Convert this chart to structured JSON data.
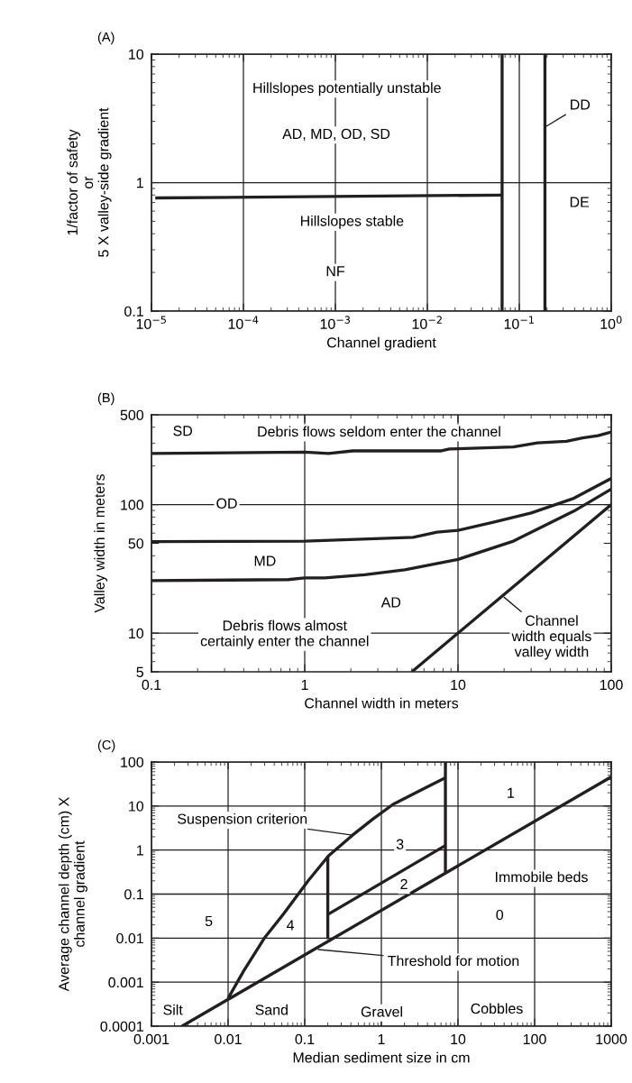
{
  "chart_data": [
    {
      "type": "line",
      "title": "(A)",
      "xlabel": "Channel gradient",
      "ylabel": "1/factor of safety\nor\n5 X valley-side gradient",
      "log": "xy",
      "grid": true,
      "legend": false,
      "marker": "none",
      "line_style": "solid",
      "xlim": [
        1e-05,
        1
      ],
      "ylim": [
        0.1,
        10
      ],
      "xticks": [
        {
          "value": 1e-05,
          "label": "10$^{−5}$"
        },
        {
          "value": 0.0001,
          "label": "10$^{−4}$"
        },
        {
          "value": 0.001,
          "label": "10$^{−3}$"
        },
        {
          "value": 0.01,
          "label": "10$^{−2}$"
        },
        {
          "value": 0.1,
          "label": "10$^{−1}$"
        },
        {
          "value": 1,
          "label": "10$^{0}$"
        }
      ],
      "yticks": [
        0.1,
        1,
        10
      ],
      "series": [
        {
          "color": "#231f20",
          "x": [
            1.1e-05,
            0.065
          ],
          "values": [
            0.76,
            0.8
          ]
        },
        {
          "color": "#231f20",
          "x": [
            0.065,
            0.065
          ],
          "values": [
            0.1,
            10
          ]
        },
        {
          "color": "#231f20",
          "x": [
            0.19,
            0.19
          ],
          "values": [
            0.1,
            10
          ]
        }
      ],
      "annotations": [
        "Hillslopes potentially unstable",
        "AD, MD, OD, SD",
        "Hillslopes stable",
        {
          "text": "NF",
          "x": 0.001,
          "y": 0.2
        },
        {
          "text": "DD",
          "x": 0.19,
          "y": 2.7
        },
        {
          "text": "DE",
          "x": 0.45,
          "y": 0.69
        }
      ]
    },
    {
      "type": "line",
      "title": "(B)",
      "xlabel": "Channel width in meters",
      "ylabel": "Valley width in meters",
      "log": "xy",
      "grid": "x",
      "legend": false,
      "marker": "none",
      "line_style": "solid",
      "xlim": [
        0.1,
        100
      ],
      "ylim": [
        5,
        500
      ],
      "xticks": [
        0.1,
        1,
        10,
        100
      ],
      "yticks": [
        5,
        10,
        50,
        100,
        500
      ],
      "ref_lines": [
        {
          "axis": "y",
          "value": 10,
          "color": "#231f20"
        },
        {
          "axis": "y",
          "value": 100,
          "color": "#231f20"
        }
      ],
      "series": [
        {
          "color": "#231f20",
          "x": [
            0.1,
            1,
            1.43,
            2.06,
            7.8,
            8.8,
            23,
            33,
            51,
            65,
            82,
            100
          ],
          "values": [
            250,
            256,
            250,
            262,
            262,
            271,
            281,
            302,
            311,
            330,
            344,
            367
          ]
        },
        {
          "color": "#231f20",
          "x": [
            0.1,
            1,
            5.1,
            7.3,
            10,
            17,
            30,
            57,
            100
          ],
          "values": [
            51.5,
            52,
            55.7,
            61,
            63,
            73,
            86,
            112,
            160
          ]
        },
        {
          "color": "#231f20",
          "x": [
            0.1,
            0.78,
            1,
            1.35,
            2.46,
            4.5,
            10,
            23,
            57,
            100
          ],
          "values": [
            25.6,
            26.1,
            26.9,
            26.9,
            28.5,
            31.1,
            37.5,
            52,
            89,
            132
          ]
        },
        {
          "color": "#231f20",
          "x": [
            5,
            100
          ],
          "values": [
            5,
            100
          ]
        }
      ],
      "annotations": [
        {
          "text": "SD",
          "x": 0.16,
          "y": 367
        },
        "Debris flows seldom enter the channel",
        {
          "text": "OD",
          "x": 0.31,
          "y": 100
        },
        {
          "text": "MD",
          "x": 0.55,
          "y": 35.7
        },
        {
          "text": "AD",
          "x": 3.66,
          "y": 17
        },
        {
          "text": "Debris flows almost\ncertainly enter the channel",
          "x": 0.74,
          "y": 9.75
        },
        {
          "text": "Channel\nwidth equals\nvalley width",
          "x": 20,
          "y": 19
        }
      ]
    },
    {
      "type": "line",
      "title": "(C)",
      "xlabel": "Median sediment size in cm",
      "ylabel": "Average channel depth (cm) X\nchannel gradient",
      "log": "xy",
      "grid": true,
      "legend": false,
      "marker": "none",
      "line_style": "solid",
      "xlim": [
        0.001,
        1000
      ],
      "ylim": [
        0.0001,
        100
      ],
      "xticks": [
        0.001,
        0.01,
        0.1,
        1,
        10,
        100,
        1000
      ],
      "yticks": [
        0.0001,
        0.001,
        0.01,
        0.1,
        1,
        10,
        100
      ],
      "series": [
        {
          "color": "#231f20",
          "x": [
            0.0025,
            1000
          ],
          "values": [
            0.0001,
            46
          ]
        },
        {
          "color": "#231f20",
          "x": [
            0.01,
            0.016,
            0.0296,
            0.054,
            0.112,
            0.205,
            0.42,
            0.78,
            1.42,
            3.74,
            6.85
          ],
          "values": [
            0.00043,
            0.0018,
            0.0099,
            0.037,
            0.205,
            0.74,
            2.18,
            5.1,
            10.9,
            25.7,
            44
          ]
        },
        {
          "color": "#231f20",
          "x": [
            6.85,
            6.85
          ],
          "values": [
            0.315,
            100
          ]
        },
        {
          "color": "#231f20",
          "x": [
            0.2,
            0.2
          ],
          "values": [
            0.74,
            0.0095
          ]
        },
        {
          "color": "#231f20",
          "x": [
            0.2,
            6.85
          ],
          "values": [
            0.0344,
            1.27
          ]
        }
      ],
      "annotations": [
        {
          "text": "Suspension criterion",
          "x": 0.42,
          "y": 2.18
        },
        {
          "text": "1",
          "x": 48.7,
          "y": 18.6
        },
        {
          "text": "3",
          "x": 1.75,
          "y": 1.27
        },
        {
          "text": "2",
          "x": 1.97,
          "y": 0.158
        },
        "Immobile beds",
        {
          "text": "5",
          "x": 0.0056,
          "y": 0.0229
        },
        {
          "text": "4",
          "x": 0.065,
          "y": 0.0185
        },
        {
          "text": "0",
          "x": 35,
          "y": 0.0316
        },
        {
          "text": "Threshold for motion",
          "x": 0.15,
          "y": 0.0055
        },
        {
          "text": "Silt",
          "x": 0.0019,
          "y": 0.00022
        },
        {
          "text": "Sand",
          "x": 0.037,
          "y": 0.00022
        },
        "Gravel",
        "Cobbles"
      ]
    }
  ]
}
